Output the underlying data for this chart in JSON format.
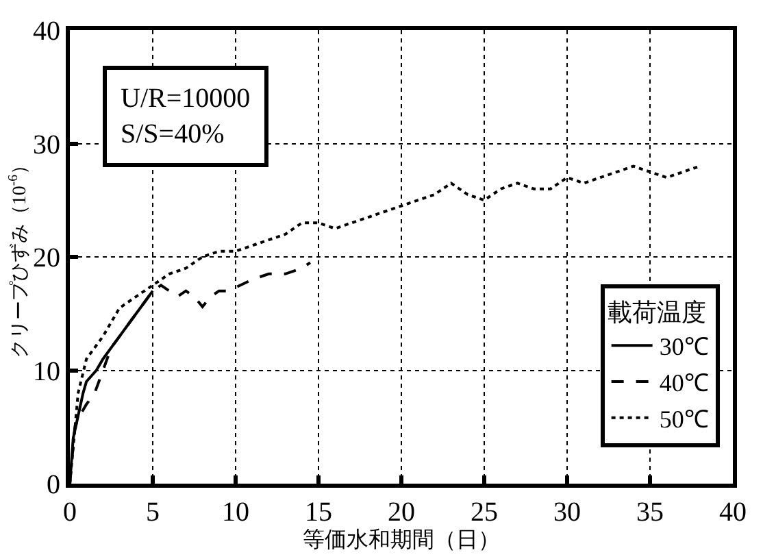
{
  "chart_data": {
    "type": "line",
    "xlabel": "等価水和期間（日）",
    "ylabel": "クリープひずみ（10$^{-6}$）",
    "legend_title": "載荷温度",
    "xlim": [
      0,
      40
    ],
    "xticks": [
      0,
      5,
      10,
      15,
      20,
      25,
      30,
      35,
      40
    ],
    "ylim": [
      0,
      40
    ],
    "yticks": [
      0,
      10,
      20,
      30,
      40
    ],
    "grid": true,
    "legend": "bottom right",
    "marker": "none",
    "annotations": [
      "U/R=10000\nS/S=40%"
    ],
    "series": [
      {
        "name": "30℃",
        "color": "#000000",
        "line_style": "solid",
        "x": [
          0,
          0.2,
          0.5,
          0.8,
          1,
          1.3,
          1.6,
          2,
          2.5,
          3,
          3.5,
          4,
          4.5,
          5
        ],
        "values": [
          0,
          4,
          6,
          8,
          9,
          9.5,
          10,
          11,
          12,
          13,
          14,
          15,
          16,
          17
        ]
      },
      {
        "name": "40℃",
        "color": "#000000",
        "line_style": "dashed",
        "x": [
          0,
          0.3,
          0.6,
          1,
          1.5,
          2,
          2.5,
          3,
          3.5,
          4,
          4.5,
          5,
          5.5,
          6,
          6.5,
          7,
          7.5,
          8,
          8.5,
          9,
          9.5,
          10,
          11,
          12,
          13,
          14,
          14.5
        ],
        "values": [
          0,
          5,
          6,
          7,
          8,
          10,
          12,
          13,
          14,
          15,
          16,
          17,
          17.5,
          17,
          16.5,
          17,
          16.5,
          15.6,
          16.5,
          17,
          17,
          17.3,
          18,
          18.5,
          18.5,
          19,
          19.5
        ]
      },
      {
        "name": "50℃",
        "color": "#000000",
        "line_style": "dotted",
        "x": [
          0,
          0.5,
          1,
          1.5,
          2,
          3,
          3.5,
          4,
          5,
          6,
          7,
          8,
          9,
          10,
          11,
          12,
          13,
          14,
          15,
          16,
          17,
          18,
          20,
          22,
          23,
          24,
          25,
          26,
          27,
          28,
          29,
          30,
          31,
          32,
          33,
          34,
          35,
          36,
          37,
          38
        ],
        "values": [
          0,
          8,
          11,
          12,
          13,
          15.5,
          16,
          16.5,
          17.5,
          18.5,
          19,
          20,
          20.5,
          20.5,
          21,
          21.5,
          22,
          23,
          23,
          22.5,
          23,
          23.5,
          24.5,
          25.5,
          26.5,
          25.5,
          25,
          26,
          26.5,
          26,
          26,
          27,
          26.5,
          27,
          27.5,
          28,
          27.5,
          27,
          27.5,
          28
        ]
      }
    ]
  }
}
